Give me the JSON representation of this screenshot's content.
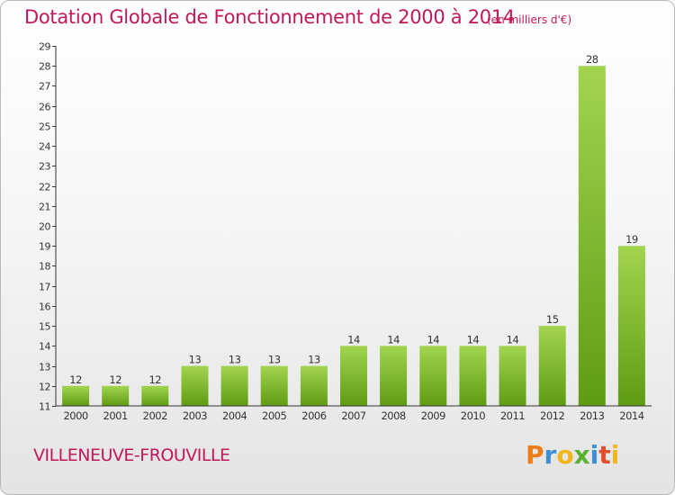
{
  "header": {
    "title": "Dotation Globale de Fonctionnement de 2000 à 2014",
    "subtitle": "(en milliers d'€)"
  },
  "footer": {
    "commune": "VILLENEUVE-FROUVILLE",
    "logo_text": "Proxiti"
  },
  "colors": {
    "title": "#c2185b",
    "bar_light": "#a2d450",
    "bar_dark": "#5f9c12",
    "axis": "#333333"
  },
  "chart_data": {
    "type": "bar",
    "categories": [
      "2000",
      "2001",
      "2002",
      "2003",
      "2004",
      "2005",
      "2006",
      "2007",
      "2008",
      "2009",
      "2010",
      "2011",
      "2012",
      "2013",
      "2014"
    ],
    "values": [
      12,
      12,
      12,
      13,
      13,
      13,
      13,
      14,
      14,
      14,
      14,
      14,
      15,
      28,
      19
    ],
    "data_labels": [
      "12",
      "12",
      "12",
      "13",
      "13",
      "13",
      "13",
      "14",
      "14",
      "14",
      "14",
      "14",
      "15",
      "28",
      "19"
    ],
    "y_ticks": [
      "11",
      "12",
      "13",
      "14",
      "15",
      "16",
      "17",
      "18",
      "19",
      "20",
      "21",
      "22",
      "23",
      "24",
      "25",
      "26",
      "27",
      "28",
      "29"
    ],
    "ylim": [
      11,
      29
    ],
    "grid": false,
    "legend": "none"
  }
}
